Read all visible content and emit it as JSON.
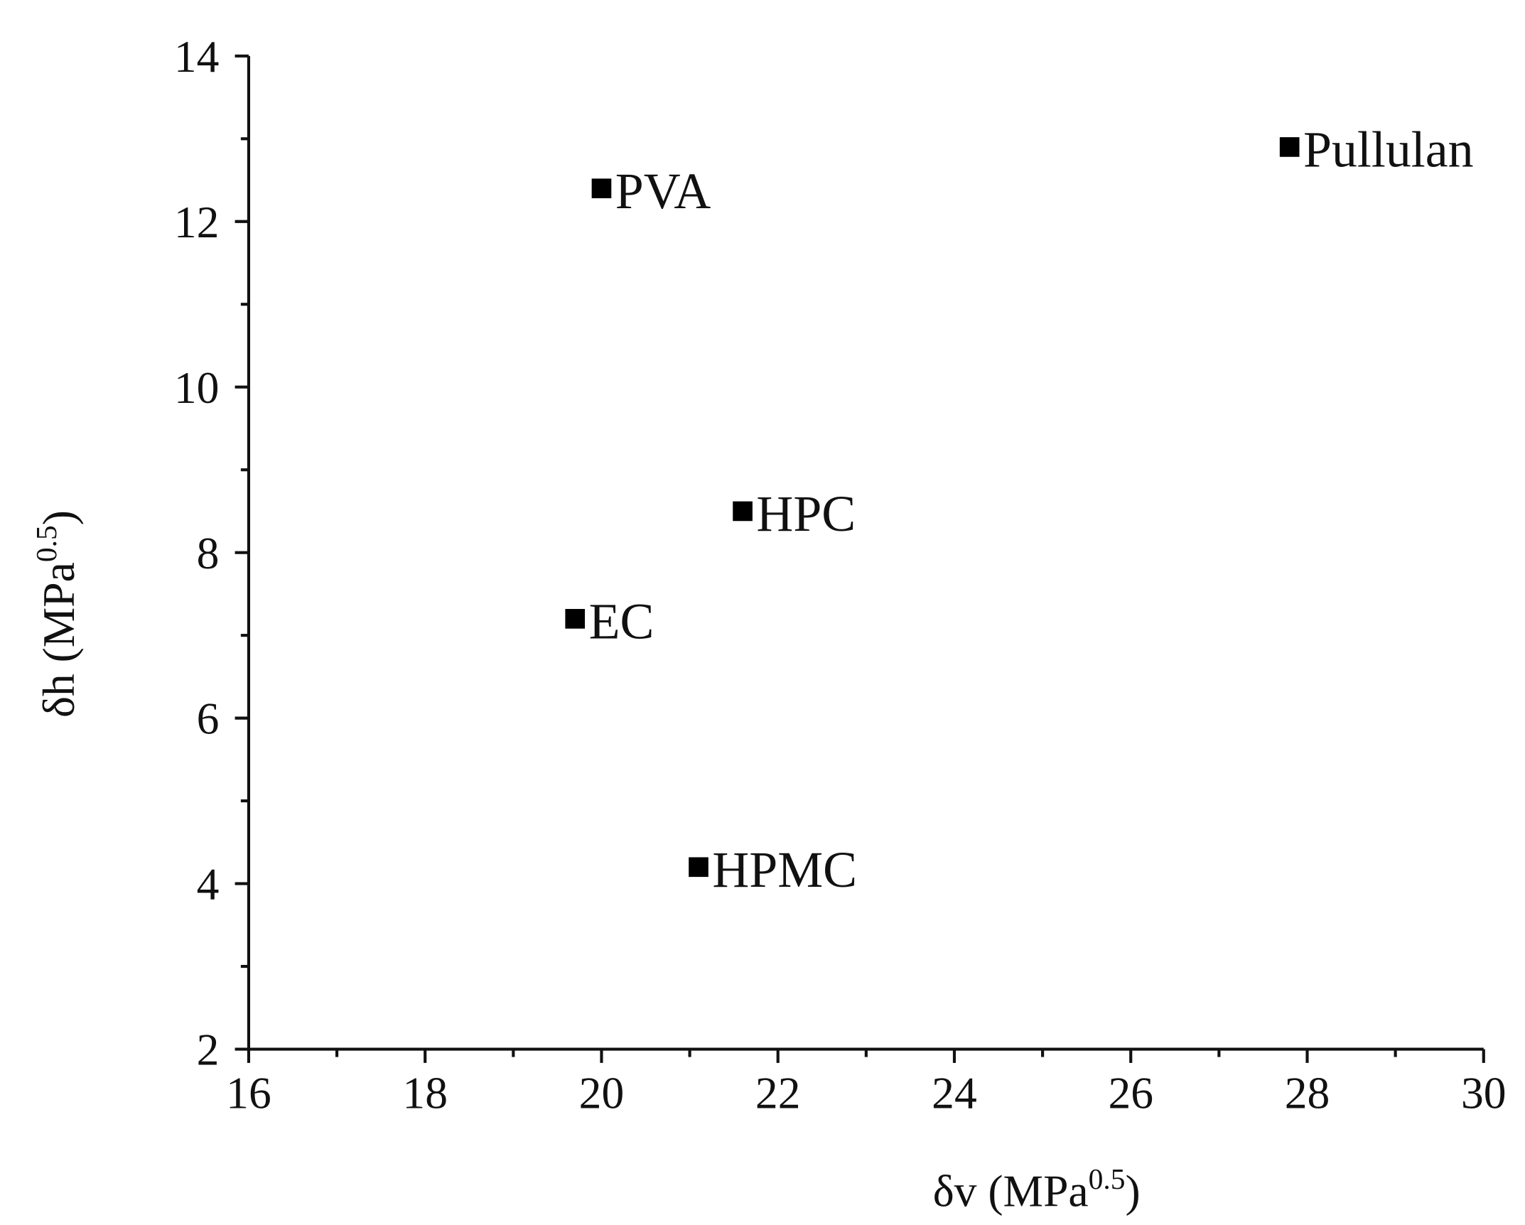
{
  "chart_data": {
    "type": "scatter",
    "x_label": [
      "δv (MPa",
      "0.5",
      ")"
    ],
    "y_label": [
      "δh (MPa",
      "0.5",
      ")"
    ],
    "labels": [
      "PVA",
      "Pullulan",
      "HPC",
      "EC",
      "HPMC"
    ],
    "x": [
      20.0,
      27.8,
      21.6,
      19.7,
      21.1
    ],
    "values": [
      12.4,
      12.9,
      8.5,
      7.2,
      4.2
    ],
    "color": "#000000",
    "xlim": [
      16,
      30
    ],
    "xticks": [
      16,
      18,
      20,
      22,
      24,
      26,
      28,
      30
    ],
    "xminor_ticks": [
      17,
      19,
      21,
      23,
      25,
      27,
      29
    ],
    "ylim": [
      2,
      14
    ],
    "yticks": [
      2,
      4,
      6,
      8,
      10,
      12,
      14
    ],
    "yminor_ticks": [
      3,
      5,
      7,
      9,
      11,
      13
    ]
  }
}
